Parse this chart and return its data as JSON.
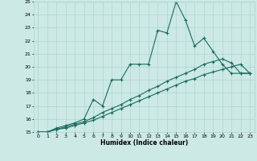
{
  "xlabel": "Humidex (Indice chaleur)",
  "xlim": [
    -0.5,
    23.5
  ],
  "ylim": [
    15,
    25
  ],
  "xticks": [
    0,
    1,
    2,
    3,
    4,
    5,
    6,
    7,
    8,
    9,
    10,
    11,
    12,
    13,
    14,
    15,
    16,
    17,
    18,
    19,
    20,
    21,
    22,
    23
  ],
  "yticks": [
    15,
    16,
    17,
    18,
    19,
    20,
    21,
    22,
    23,
    24,
    25
  ],
  "bg_color": "#cce9e5",
  "grid_color": "#aed4cf",
  "line_color": "#1a6b5e",
  "line1_x": [
    0,
    1,
    2,
    3,
    4,
    5,
    6,
    7,
    8,
    9,
    10,
    11,
    12,
    13,
    14,
    15,
    16,
    17,
    18,
    19,
    20,
    21,
    22,
    23
  ],
  "line1_y": [
    15.0,
    15.0,
    15.3,
    15.5,
    15.7,
    16.0,
    17.5,
    17.0,
    19.0,
    19.0,
    20.2,
    20.2,
    20.2,
    22.8,
    22.6,
    25.0,
    23.6,
    21.6,
    22.2,
    21.2,
    20.2,
    19.5,
    19.5,
    19.5
  ],
  "line2_x": [
    0,
    1,
    2,
    3,
    4,
    5,
    6,
    7,
    8,
    9,
    10,
    11,
    12,
    13,
    14,
    15,
    16,
    17,
    18,
    19,
    20,
    21,
    22,
    23
  ],
  "line2_y": [
    15.0,
    15.0,
    15.2,
    15.4,
    15.6,
    15.8,
    16.1,
    16.5,
    16.8,
    17.1,
    17.5,
    17.8,
    18.2,
    18.5,
    18.9,
    19.2,
    19.5,
    19.8,
    20.2,
    20.4,
    20.6,
    20.3,
    19.5,
    19.5
  ],
  "line3_x": [
    0,
    1,
    2,
    3,
    4,
    5,
    6,
    7,
    8,
    9,
    10,
    11,
    12,
    13,
    14,
    15,
    16,
    17,
    18,
    19,
    20,
    21,
    22,
    23
  ],
  "line3_y": [
    15.0,
    15.0,
    15.2,
    15.3,
    15.5,
    15.7,
    15.9,
    16.2,
    16.5,
    16.8,
    17.1,
    17.4,
    17.7,
    18.0,
    18.3,
    18.6,
    18.9,
    19.1,
    19.4,
    19.6,
    19.8,
    20.0,
    20.2,
    19.5
  ]
}
